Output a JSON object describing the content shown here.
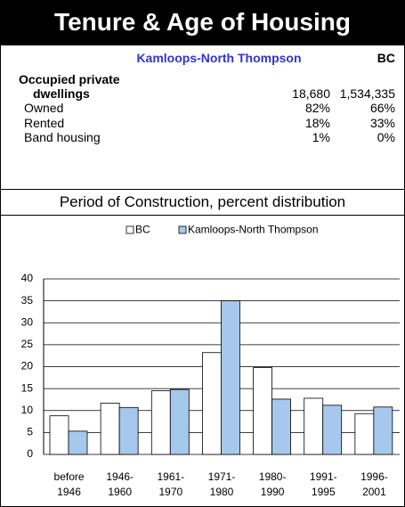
{
  "title": "Tenure & Age of Housing",
  "table": {
    "columns": [
      "Kamloops-North Thompson",
      "BC"
    ],
    "rows": [
      [
        "Occupied private dwellings",
        "18,680",
        "1,534,335"
      ],
      [
        "Owned",
        "82%",
        "66%"
      ],
      [
        "Rented",
        "18%",
        "33%"
      ],
      [
        "Band housing",
        "1%",
        "0%"
      ]
    ]
  },
  "chart_data": {
    "type": "bar",
    "title": "Period of Construction, percent distribution",
    "categories": [
      "before 1946",
      "1946-1960",
      "1961-1970",
      "1971-1980",
      "1980-1990",
      "1991-1995",
      "1996-2001"
    ],
    "series": [
      {
        "name": "BC",
        "color": "#ffffff",
        "values": [
          8.8,
          11.7,
          14.5,
          23.2,
          19.8,
          12.8,
          9.3
        ]
      },
      {
        "name": "Kamloops-North Thompson",
        "color": "#a6c8ec",
        "values": [
          5.3,
          10.7,
          14.8,
          35,
          12.6,
          11.2,
          10.8
        ]
      }
    ],
    "ylim": [
      0,
      40
    ],
    "yticks": [
      0,
      5,
      10,
      15,
      20,
      25,
      30,
      35,
      40
    ],
    "grid": true,
    "legend": "top"
  }
}
